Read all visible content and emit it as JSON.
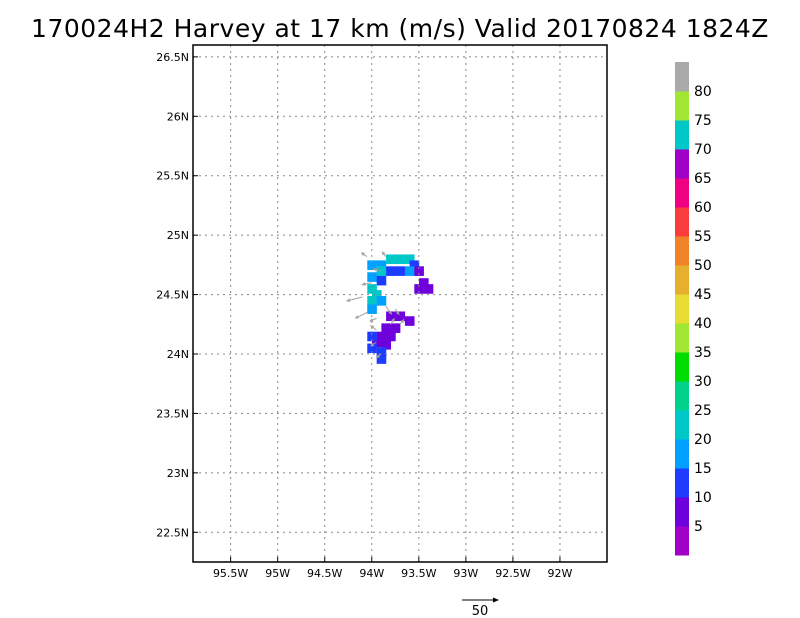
{
  "chart_data": {
    "type": "heatmap",
    "title": "170024H2 Harvey at 17 km (m/s) Valid 20170824 1824Z",
    "xlim": [
      95.9,
      91.5
    ],
    "ylim": [
      22.25,
      26.6
    ],
    "x_ticks": [
      95.5,
      95,
      94.5,
      94,
      93.5,
      93,
      92.5,
      92
    ],
    "x_tick_labels": [
      "95.5W",
      "95W",
      "94.5W",
      "94W",
      "93.5W",
      "93W",
      "92.5W",
      "92W"
    ],
    "y_ticks": [
      22.5,
      23,
      23.5,
      24,
      24.5,
      25,
      25.5,
      26,
      26.5
    ],
    "y_tick_labels": [
      "22.5N",
      "23N",
      "23.5N",
      "24N",
      "24.5N",
      "25N",
      "25.5N",
      "26N",
      "26.5N"
    ],
    "grid": true,
    "colorbar": {
      "labels": [
        "5",
        "10",
        "15",
        "20",
        "25",
        "30",
        "35",
        "40",
        "45",
        "50",
        "55",
        "60",
        "65",
        "70",
        "75",
        "80"
      ],
      "colors": [
        "#a000c8",
        "#6e00dc",
        "#1e3cff",
        "#00a0ff",
        "#00c8c8",
        "#00d28c",
        "#00dc00",
        "#a0e632",
        "#e6dc32",
        "#e6af2d",
        "#f08228",
        "#fa3c3c",
        "#f00082",
        "#a000c8",
        "#00c8c8",
        "#a0e632",
        "#aaaaaa"
      ]
    },
    "cells": [
      {
        "lon": 94.0,
        "lat": 24.75,
        "v": 17
      },
      {
        "lon": 93.9,
        "lat": 24.75,
        "v": 17
      },
      {
        "lon": 93.8,
        "lat": 24.8,
        "v": 20
      },
      {
        "lon": 93.7,
        "lat": 24.8,
        "v": 20
      },
      {
        "lon": 93.6,
        "lat": 24.8,
        "v": 20
      },
      {
        "lon": 93.55,
        "lat": 24.75,
        "v": 12
      },
      {
        "lon": 93.9,
        "lat": 24.7,
        "v": 20
      },
      {
        "lon": 93.8,
        "lat": 24.7,
        "v": 12
      },
      {
        "lon": 93.7,
        "lat": 24.7,
        "v": 12
      },
      {
        "lon": 93.6,
        "lat": 24.7,
        "v": 17
      },
      {
        "lon": 93.5,
        "lat": 24.7,
        "v": 8
      },
      {
        "lon": 93.45,
        "lat": 24.6,
        "v": 6
      },
      {
        "lon": 93.4,
        "lat": 24.55,
        "v": 6
      },
      {
        "lon": 93.5,
        "lat": 24.55,
        "v": 6
      },
      {
        "lon": 94.0,
        "lat": 24.65,
        "v": 17
      },
      {
        "lon": 93.9,
        "lat": 24.62,
        "v": 12
      },
      {
        "lon": 94.0,
        "lat": 24.55,
        "v": 20
      },
      {
        "lon": 93.95,
        "lat": 24.5,
        "v": 20
      },
      {
        "lon": 94.0,
        "lat": 24.45,
        "v": 20
      },
      {
        "lon": 94.0,
        "lat": 24.38,
        "v": 17
      },
      {
        "lon": 93.9,
        "lat": 24.45,
        "v": 17
      },
      {
        "lon": 93.8,
        "lat": 24.32,
        "v": 6
      },
      {
        "lon": 93.7,
        "lat": 24.32,
        "v": 6
      },
      {
        "lon": 93.6,
        "lat": 24.28,
        "v": 6
      },
      {
        "lon": 93.75,
        "lat": 24.22,
        "v": 6
      },
      {
        "lon": 93.85,
        "lat": 24.22,
        "v": 6
      },
      {
        "lon": 93.9,
        "lat": 24.15,
        "v": 6
      },
      {
        "lon": 93.8,
        "lat": 24.15,
        "v": 6
      },
      {
        "lon": 93.85,
        "lat": 24.08,
        "v": 6
      },
      {
        "lon": 93.95,
        "lat": 24.1,
        "v": 8
      },
      {
        "lon": 94.0,
        "lat": 24.05,
        "v": 12
      },
      {
        "lon": 93.9,
        "lat": 24.02,
        "v": 12
      },
      {
        "lon": 93.9,
        "lat": 23.96,
        "v": 12
      },
      {
        "lon": 94.0,
        "lat": 24.15,
        "v": 12
      }
    ],
    "vectors": [
      {
        "lon": 94.05,
        "lat": 24.82,
        "u": -6,
        "v": 4
      },
      {
        "lon": 93.85,
        "lat": 24.82,
        "u": -4,
        "v": 5
      },
      {
        "lon": 93.9,
        "lat": 24.7,
        "u": -8,
        "v": 2
      },
      {
        "lon": 94.0,
        "lat": 24.6,
        "u": -10,
        "v": -2
      },
      {
        "lon": 94.1,
        "lat": 24.48,
        "u": -16,
        "v": -4
      },
      {
        "lon": 94.05,
        "lat": 24.35,
        "u": -12,
        "v": -6
      },
      {
        "lon": 93.95,
        "lat": 24.3,
        "u": -7,
        "v": -3
      },
      {
        "lon": 93.85,
        "lat": 24.4,
        "u": 6,
        "v": -8
      },
      {
        "lon": 93.75,
        "lat": 24.38,
        "u": 4,
        "v": -6
      },
      {
        "lon": 93.95,
        "lat": 24.2,
        "u": -6,
        "v": 5
      },
      {
        "lon": 93.95,
        "lat": 24.1,
        "u": -6,
        "v": -4
      },
      {
        "lon": 93.9,
        "lat": 24.0,
        "u": -5,
        "v": -4
      },
      {
        "lon": 93.8,
        "lat": 24.25,
        "u": 4,
        "v": 6
      },
      {
        "lon": 93.7,
        "lat": 24.25,
        "u": 4,
        "v": 5
      }
    ],
    "reference_vector": {
      "label": "50",
      "value": 50
    }
  }
}
